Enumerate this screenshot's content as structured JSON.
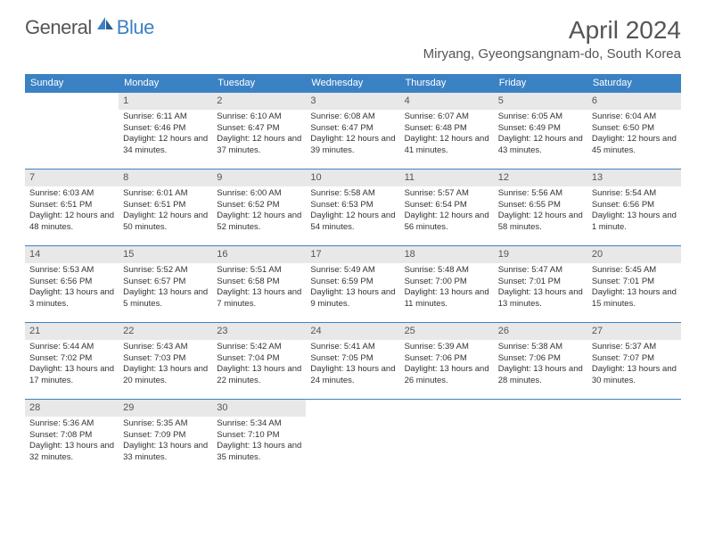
{
  "branding": {
    "text1": "General",
    "text2": "Blue",
    "icon_color": "#3b82c4"
  },
  "header": {
    "month_title": "April 2024",
    "location": "Miryang, Gyeongsangnam-do, South Korea"
  },
  "colors": {
    "header_bg": "#3b82c4",
    "header_text": "#ffffff",
    "daynum_bg": "#e8e8e8",
    "rule": "#3b82c4",
    "body_text": "#333333"
  },
  "weekdays": [
    "Sunday",
    "Monday",
    "Tuesday",
    "Wednesday",
    "Thursday",
    "Friday",
    "Saturday"
  ],
  "weeks": [
    [
      null,
      {
        "n": "1",
        "sr": "6:11 AM",
        "ss": "6:46 PM",
        "dl": "12 hours and 34 minutes."
      },
      {
        "n": "2",
        "sr": "6:10 AM",
        "ss": "6:47 PM",
        "dl": "12 hours and 37 minutes."
      },
      {
        "n": "3",
        "sr": "6:08 AM",
        "ss": "6:47 PM",
        "dl": "12 hours and 39 minutes."
      },
      {
        "n": "4",
        "sr": "6:07 AM",
        "ss": "6:48 PM",
        "dl": "12 hours and 41 minutes."
      },
      {
        "n": "5",
        "sr": "6:05 AM",
        "ss": "6:49 PM",
        "dl": "12 hours and 43 minutes."
      },
      {
        "n": "6",
        "sr": "6:04 AM",
        "ss": "6:50 PM",
        "dl": "12 hours and 45 minutes."
      }
    ],
    [
      {
        "n": "7",
        "sr": "6:03 AM",
        "ss": "6:51 PM",
        "dl": "12 hours and 48 minutes."
      },
      {
        "n": "8",
        "sr": "6:01 AM",
        "ss": "6:51 PM",
        "dl": "12 hours and 50 minutes."
      },
      {
        "n": "9",
        "sr": "6:00 AM",
        "ss": "6:52 PM",
        "dl": "12 hours and 52 minutes."
      },
      {
        "n": "10",
        "sr": "5:58 AM",
        "ss": "6:53 PM",
        "dl": "12 hours and 54 minutes."
      },
      {
        "n": "11",
        "sr": "5:57 AM",
        "ss": "6:54 PM",
        "dl": "12 hours and 56 minutes."
      },
      {
        "n": "12",
        "sr": "5:56 AM",
        "ss": "6:55 PM",
        "dl": "12 hours and 58 minutes."
      },
      {
        "n": "13",
        "sr": "5:54 AM",
        "ss": "6:56 PM",
        "dl": "13 hours and 1 minute."
      }
    ],
    [
      {
        "n": "14",
        "sr": "5:53 AM",
        "ss": "6:56 PM",
        "dl": "13 hours and 3 minutes."
      },
      {
        "n": "15",
        "sr": "5:52 AM",
        "ss": "6:57 PM",
        "dl": "13 hours and 5 minutes."
      },
      {
        "n": "16",
        "sr": "5:51 AM",
        "ss": "6:58 PM",
        "dl": "13 hours and 7 minutes."
      },
      {
        "n": "17",
        "sr": "5:49 AM",
        "ss": "6:59 PM",
        "dl": "13 hours and 9 minutes."
      },
      {
        "n": "18",
        "sr": "5:48 AM",
        "ss": "7:00 PM",
        "dl": "13 hours and 11 minutes."
      },
      {
        "n": "19",
        "sr": "5:47 AM",
        "ss": "7:01 PM",
        "dl": "13 hours and 13 minutes."
      },
      {
        "n": "20",
        "sr": "5:45 AM",
        "ss": "7:01 PM",
        "dl": "13 hours and 15 minutes."
      }
    ],
    [
      {
        "n": "21",
        "sr": "5:44 AM",
        "ss": "7:02 PM",
        "dl": "13 hours and 17 minutes."
      },
      {
        "n": "22",
        "sr": "5:43 AM",
        "ss": "7:03 PM",
        "dl": "13 hours and 20 minutes."
      },
      {
        "n": "23",
        "sr": "5:42 AM",
        "ss": "7:04 PM",
        "dl": "13 hours and 22 minutes."
      },
      {
        "n": "24",
        "sr": "5:41 AM",
        "ss": "7:05 PM",
        "dl": "13 hours and 24 minutes."
      },
      {
        "n": "25",
        "sr": "5:39 AM",
        "ss": "7:06 PM",
        "dl": "13 hours and 26 minutes."
      },
      {
        "n": "26",
        "sr": "5:38 AM",
        "ss": "7:06 PM",
        "dl": "13 hours and 28 minutes."
      },
      {
        "n": "27",
        "sr": "5:37 AM",
        "ss": "7:07 PM",
        "dl": "13 hours and 30 minutes."
      }
    ],
    [
      {
        "n": "28",
        "sr": "5:36 AM",
        "ss": "7:08 PM",
        "dl": "13 hours and 32 minutes."
      },
      {
        "n": "29",
        "sr": "5:35 AM",
        "ss": "7:09 PM",
        "dl": "13 hours and 33 minutes."
      },
      {
        "n": "30",
        "sr": "5:34 AM",
        "ss": "7:10 PM",
        "dl": "13 hours and 35 minutes."
      },
      null,
      null,
      null,
      null
    ]
  ],
  "labels": {
    "sunrise": "Sunrise: ",
    "sunset": "Sunset: ",
    "daylight": "Daylight: "
  }
}
